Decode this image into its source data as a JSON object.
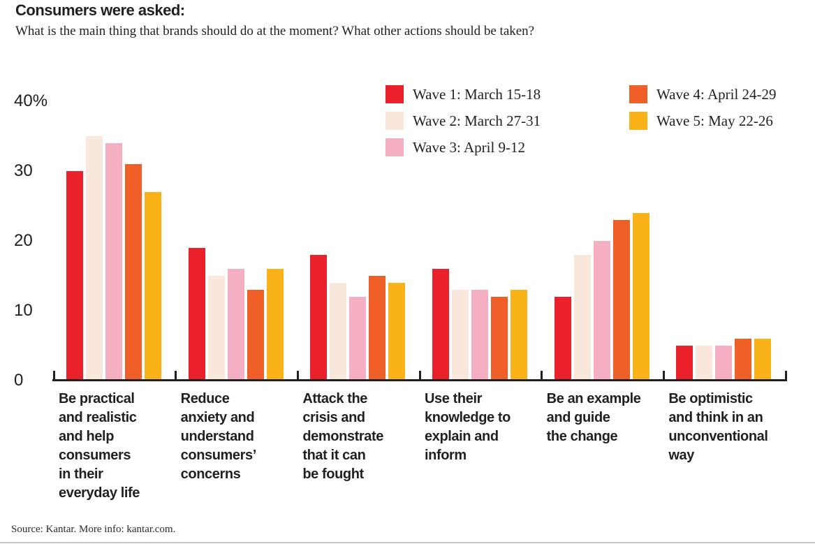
{
  "header": {
    "title": "Consumers were asked:",
    "subtitle": "What is the main thing that brands should do at the moment? What other actions should be taken?"
  },
  "footer": {
    "source": "Source: Kantar. More info: kantar.com."
  },
  "colors": {
    "wave1_red": "#EA212B",
    "wave2_cream": "#FAE7DC",
    "wave3_pink": "#F4B0C2",
    "wave4_orange": "#EF5F28",
    "wave5_yellow": "#F9B318",
    "axis": "#231f20",
    "text": "#231f20"
  },
  "chart_data": {
    "type": "bar",
    "title": "Consumers were asked:",
    "subtitle": "What is the main thing that brands should do at the moment? What other actions should be taken?",
    "xlabel": "",
    "ylabel": "%",
    "ylim": [
      0,
      40
    ],
    "grid": false,
    "legend_position": "top-right",
    "yticks": [
      {
        "value": 40,
        "label": "40%"
      },
      {
        "value": 30,
        "label": "30"
      },
      {
        "value": 20,
        "label": "20"
      },
      {
        "value": 10,
        "label": "10"
      },
      {
        "value": 0,
        "label": "0"
      }
    ],
    "categories": [
      "Be practical and realistic and help consumers in their everyday life",
      "Reduce anxiety and understand consumers’ concerns",
      "Attack the crisis and demonstrate that it can be fought",
      "Use their knowledge to explain and inform",
      "Be an example and guide the change",
      "Be optimistic and think in an unconventional way"
    ],
    "category_lines": [
      [
        "Be practical",
        "and realistic",
        "and help",
        "consumers",
        "in their",
        "everyday life"
      ],
      [
        "Reduce",
        "anxiety and",
        "understand",
        "consumers’",
        "concerns"
      ],
      [
        "Attack the",
        "crisis and",
        "demonstrate",
        "that it can",
        "be fought"
      ],
      [
        "Use their",
        "knowledge to",
        "explain and",
        "inform"
      ],
      [
        "Be an example",
        "and guide",
        "the change"
      ],
      [
        "Be optimistic",
        "and think in an",
        "unconventional",
        "way"
      ]
    ],
    "series": [
      {
        "name": "Wave 1: March 15-18",
        "color": "#EA212B",
        "values": [
          30,
          19,
          18,
          16,
          12,
          5
        ]
      },
      {
        "name": "Wave 2: March 27-31",
        "color": "#FAE7DC",
        "values": [
          35,
          15,
          14,
          13,
          18,
          5
        ]
      },
      {
        "name": "Wave 3: April 9-12",
        "color": "#F4B0C2",
        "values": [
          34,
          16,
          12,
          13,
          20,
          5
        ]
      },
      {
        "name": "Wave 4: April 24-29",
        "color": "#EF5F28",
        "values": [
          31,
          13,
          15,
          12,
          23,
          6
        ]
      },
      {
        "name": "Wave 5: May 22-26",
        "color": "#F9B318",
        "values": [
          27,
          16,
          14,
          13,
          24,
          6
        ]
      }
    ],
    "legend_columns": [
      [
        0,
        1,
        2
      ],
      [
        3,
        4
      ]
    ]
  }
}
